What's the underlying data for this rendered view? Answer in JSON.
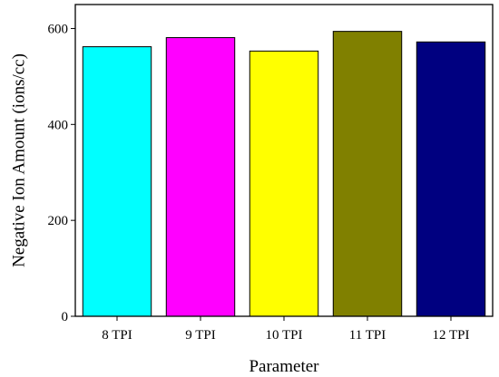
{
  "chart_data": {
    "type": "bar",
    "categories": [
      "8 TPI",
      "9 TPI",
      "10 TPI",
      "11 TPI",
      "12 TPI"
    ],
    "values": [
      562,
      581,
      553,
      594,
      572
    ],
    "colors": [
      "#00FFFF",
      "#FF00FF",
      "#FFFF00",
      "#808000",
      "#000080"
    ],
    "xlabel": "Parameter",
    "ylabel": "Negative Ion Amount (ions/cc)",
    "ylim": [
      0,
      650
    ],
    "yticks": [
      0,
      200,
      400,
      600
    ],
    "grid": false
  }
}
